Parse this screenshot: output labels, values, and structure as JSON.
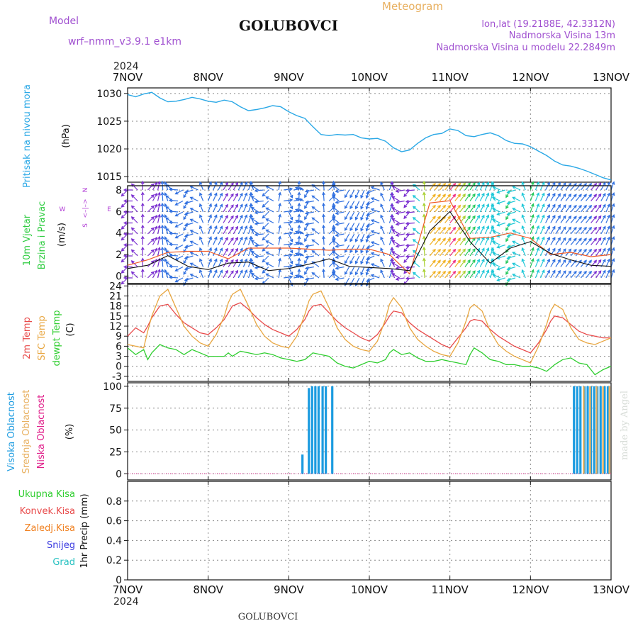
{
  "header": {
    "meteogram_label": "Meteogram",
    "station": "GOLUBOVCI",
    "model_label": "Model",
    "model_name": "wrf–nmm_v3.9.1  e1km",
    "coords": "lon,lat (19.2188E, 42.3312N)",
    "elevation": "Nadmorska Visina 13m",
    "model_elevation": "Nadmorska Visina u modelu 22.2849m",
    "footer_station": "GOLUBOVCI",
    "watermark": "made by Angel"
  },
  "colors": {
    "pressure": "#2aa8e6",
    "wind_label": "#2ecc40",
    "wind_dir_label": "#b23fd6",
    "temp_2m": "#e84a4a",
    "temp_sfc": "#e8a640",
    "dewpoint": "#2fce2f",
    "cloud_high": "#1b9be0",
    "cloud_mid": "#e8b060",
    "cloud_low": "#e01f8a",
    "precip_total": "#2fce2f",
    "precip_conv": "#e84a4a",
    "precip_strat": "#f08020",
    "snow": "#3a3ae0",
    "hail": "#25c0c0",
    "header_purple": "#a050d0",
    "header_orange": "#e8b060"
  },
  "chart_data": [
    {
      "type": "line",
      "panel": "pressure",
      "ylabel": "Pritisak na nivou mora",
      "unit": "(hPa)",
      "ylim": [
        1014,
        1031
      ],
      "yticks": [
        1015,
        1020,
        1025,
        1030
      ],
      "grid": true,
      "x_days": [
        0,
        0.1,
        0.2,
        0.3,
        0.4,
        0.5,
        0.6,
        0.7,
        0.8,
        0.9,
        1.0,
        1.1,
        1.2,
        1.3,
        1.4,
        1.5,
        1.6,
        1.7,
        1.8,
        1.9,
        2.0,
        2.1,
        2.2,
        2.3,
        2.4,
        2.5,
        2.6,
        2.7,
        2.8,
        2.9,
        3.0,
        3.1,
        3.2,
        3.3,
        3.4,
        3.5,
        3.6,
        3.7,
        3.8,
        3.9,
        4.0,
        4.1,
        4.2,
        4.3,
        4.4,
        4.5,
        4.6,
        4.7,
        4.8,
        4.9,
        5.0,
        5.1,
        5.2,
        5.3,
        5.4,
        5.5,
        5.6,
        5.7,
        5.8,
        5.9,
        6.0
      ],
      "values": [
        1029.8,
        1029.4,
        1029.9,
        1030.2,
        1029.2,
        1028.5,
        1028.6,
        1028.9,
        1029.3,
        1029.0,
        1028.6,
        1028.4,
        1028.8,
        1028.5,
        1027.6,
        1026.9,
        1027.1,
        1027.4,
        1027.8,
        1027.6,
        1026.7,
        1026.0,
        1025.5,
        1024.0,
        1022.6,
        1022.4,
        1022.6,
        1022.5,
        1022.6,
        1022.0,
        1021.8,
        1021.9,
        1021.4,
        1020.2,
        1019.5,
        1019.8,
        1021.0,
        1022.0,
        1022.6,
        1022.8,
        1023.6,
        1023.3,
        1022.4,
        1022.2,
        1022.6,
        1022.9,
        1022.4,
        1021.5,
        1021.0,
        1020.9,
        1020.4,
        1019.6,
        1018.8,
        1017.8,
        1017.1,
        1016.9,
        1016.5,
        1016.0,
        1015.4,
        1014.8,
        1014.4
      ]
    },
    {
      "type": "line",
      "panel": "wind",
      "ylabel": "10m Vjetar",
      "ylabel2": "Brzina i Pravac",
      "unit": "(m/s)",
      "compass": {
        "n": "N",
        "e": "E",
        "s": "S",
        "w": "W",
        "glyph": "<–|–>"
      },
      "ylim": [
        -0.7,
        8.4
      ],
      "yticks": [
        0,
        2,
        4,
        6,
        8
      ],
      "grid": true,
      "x_days": [
        0,
        0.25,
        0.5,
        0.75,
        1.0,
        1.25,
        1.5,
        1.75,
        2.0,
        2.25,
        2.5,
        2.75,
        3.0,
        3.25,
        3.5,
        3.75,
        4.0,
        4.25,
        4.5,
        4.75,
        5.0,
        5.25,
        5.5,
        5.75,
        6.0
      ],
      "speed_mean": [
        0.7,
        1.0,
        1.9,
        0.9,
        0.6,
        1.2,
        1.3,
        0.5,
        0.7,
        1.1,
        1.6,
        0.9,
        0.8,
        0.7,
        0.5,
        4.2,
        6.0,
        3.2,
        1.2,
        2.6,
        3.2,
        2.1,
        1.5,
        1.0,
        0.9
      ],
      "gusts": [
        1.0,
        1.5,
        2.2,
        2.3,
        2.3,
        1.6,
        2.6,
        2.6,
        2.6,
        2.5,
        2.4,
        2.5,
        2.5,
        2.0,
        0.2,
        6.8,
        7.0,
        3.5,
        3.6,
        4.0,
        3.5,
        2.0,
        2.2,
        1.8,
        2.0
      ],
      "direction_deg": [
        45,
        225,
        160,
        30,
        200,
        215,
        200,
        45,
        335,
        30,
        225,
        30,
        20,
        200,
        40,
        220,
        220,
        215,
        200,
        30,
        200,
        210,
        220,
        220,
        200
      ]
    },
    {
      "type": "line",
      "panel": "temperature",
      "ylabel": "2m Temp",
      "ylabel2": "SFC Temp",
      "ylabel3": "dewpt Temp",
      "unit": "(C)",
      "ylim": [
        -4.5,
        24.5
      ],
      "yticks": [
        -3,
        0,
        3,
        6,
        9,
        12,
        15,
        18,
        21,
        24
      ],
      "grid": true,
      "x_days": [
        0,
        0.1,
        0.2,
        0.25,
        0.3,
        0.4,
        0.5,
        0.6,
        0.7,
        0.8,
        0.9,
        1.0,
        1.1,
        1.2,
        1.25,
        1.3,
        1.4,
        1.5,
        1.6,
        1.7,
        1.8,
        1.9,
        2.0,
        2.1,
        2.2,
        2.25,
        2.3,
        2.4,
        2.5,
        2.6,
        2.7,
        2.8,
        2.9,
        3.0,
        3.1,
        3.2,
        3.25,
        3.3,
        3.4,
        3.5,
        3.6,
        3.7,
        3.8,
        3.9,
        4.0,
        4.1,
        4.2,
        4.25,
        4.3,
        4.4,
        4.5,
        4.6,
        4.7,
        4.8,
        4.9,
        5.0,
        5.1,
        5.2,
        5.25,
        5.3,
        5.4,
        5.5,
        5.6,
        5.7,
        5.8,
        5.9,
        6.0
      ],
      "series": [
        {
          "name": "2m Temp",
          "values": [
            9.0,
            11.5,
            10.0,
            12.0,
            14.5,
            18.0,
            18.5,
            15.5,
            13.0,
            11.5,
            10.0,
            9.5,
            11.5,
            14.0,
            16.0,
            18.0,
            19.0,
            17.0,
            14.5,
            12.5,
            11.0,
            10.0,
            9.0,
            11.0,
            14.0,
            16.5,
            18.0,
            18.5,
            16.0,
            13.5,
            11.5,
            10.0,
            8.5,
            7.5,
            9.5,
            13.0,
            15.0,
            16.5,
            16.0,
            13.0,
            11.0,
            9.5,
            8.0,
            6.5,
            5.5,
            8.5,
            11.5,
            13.5,
            14.0,
            13.5,
            11.0,
            9.0,
            7.5,
            6.0,
            5.0,
            4.0,
            7.0,
            11.0,
            13.5,
            15.0,
            14.5,
            12.5,
            10.5,
            9.5,
            9.0,
            8.5,
            8.5
          ]
        },
        {
          "name": "SFC Temp",
          "values": [
            6.5,
            6.0,
            5.5,
            10.5,
            15.0,
            21.0,
            23.0,
            17.5,
            12.0,
            9.0,
            7.0,
            6.0,
            9.5,
            15.0,
            19.0,
            21.5,
            23.0,
            18.0,
            12.5,
            9.0,
            7.0,
            6.0,
            5.5,
            9.0,
            15.5,
            19.5,
            21.5,
            22.5,
            17.5,
            11.5,
            8.0,
            6.0,
            5.0,
            4.5,
            7.5,
            14.0,
            18.5,
            20.5,
            17.5,
            11.5,
            8.0,
            6.0,
            4.5,
            3.5,
            3.0,
            7.0,
            13.5,
            17.5,
            18.5,
            16.5,
            10.5,
            6.5,
            4.5,
            3.0,
            2.0,
            1.0,
            6.0,
            12.5,
            16.5,
            18.5,
            17.0,
            11.5,
            8.0,
            7.0,
            6.5,
            7.5,
            8.5
          ]
        },
        {
          "name": "dewpt Temp",
          "values": [
            5.5,
            3.5,
            5.0,
            2.0,
            4.0,
            6.5,
            5.5,
            5.0,
            3.5,
            5.0,
            4.0,
            3.0,
            3.0,
            3.0,
            4.0,
            3.0,
            4.5,
            4.0,
            3.5,
            4.0,
            3.5,
            2.5,
            2.0,
            1.5,
            2.0,
            3.0,
            4.0,
            3.5,
            3.0,
            1.0,
            0.0,
            -0.5,
            0.5,
            1.5,
            1.0,
            2.0,
            4.0,
            5.0,
            3.5,
            4.0,
            2.5,
            1.5,
            1.5,
            2.0,
            1.5,
            1.0,
            0.5,
            3.5,
            5.5,
            4.0,
            2.0,
            1.5,
            0.5,
            0.5,
            0.0,
            0.0,
            -0.5,
            -1.5,
            -0.5,
            0.5,
            2.0,
            2.5,
            1.0,
            0.5,
            -2.5,
            -1.0,
            0.0
          ]
        }
      ]
    },
    {
      "type": "bar",
      "panel": "clouds",
      "ylabel": "Visoka Oblacnost",
      "ylabel2": "Srednja Oblacnost",
      "ylabel3": "Niska Oblacnost",
      "unit": "(%)",
      "ylim": [
        -7,
        104
      ],
      "yticks": [
        0,
        25,
        50,
        75,
        100
      ],
      "grid": true,
      "high_bars": [
        {
          "x": 2.17,
          "v": 22
        },
        {
          "x": 2.25,
          "v": 98
        },
        {
          "x": 2.29,
          "v": 100
        },
        {
          "x": 2.33,
          "v": 100
        },
        {
          "x": 2.37,
          "v": 100
        },
        {
          "x": 2.42,
          "v": 100
        },
        {
          "x": 2.46,
          "v": 100
        },
        {
          "x": 2.54,
          "v": 100
        },
        {
          "x": 5.54,
          "v": 100
        },
        {
          "x": 5.58,
          "v": 100
        },
        {
          "x": 5.62,
          "v": 100
        },
        {
          "x": 5.67,
          "v": 100
        },
        {
          "x": 5.71,
          "v": 100
        },
        {
          "x": 5.75,
          "v": 100
        },
        {
          "x": 5.79,
          "v": 100
        },
        {
          "x": 5.83,
          "v": 100
        },
        {
          "x": 5.87,
          "v": 100
        },
        {
          "x": 5.92,
          "v": 100
        },
        {
          "x": 5.96,
          "v": 100
        }
      ],
      "mid_bars": [
        {
          "x": 5.66,
          "v": 100
        },
        {
          "x": 5.74,
          "v": 100
        },
        {
          "x": 5.82,
          "v": 100
        },
        {
          "x": 5.9,
          "v": 100
        },
        {
          "x": 5.98,
          "v": 100
        }
      ]
    },
    {
      "type": "bar",
      "panel": "precip",
      "legend": [
        "Ukupna Kisa",
        "Konvek.Kisa",
        "Zaledj.Kisa",
        "Snijeg",
        "Grad"
      ],
      "ylabel": "1hr Precip (mm)",
      "ylim": [
        0,
        1.0
      ],
      "yticks": [
        0,
        0.2,
        0.4,
        0.6,
        0.8
      ],
      "ytick_labels": [
        "0",
        "0.2",
        "0.4",
        "0.6",
        "0.8"
      ],
      "grid": true,
      "values": []
    }
  ],
  "x_axis": {
    "year": "2024",
    "labels": [
      "7NOV",
      "8NOV",
      "9NOV",
      "10NOV",
      "11NOV",
      "12NOV",
      "13NOV"
    ]
  }
}
